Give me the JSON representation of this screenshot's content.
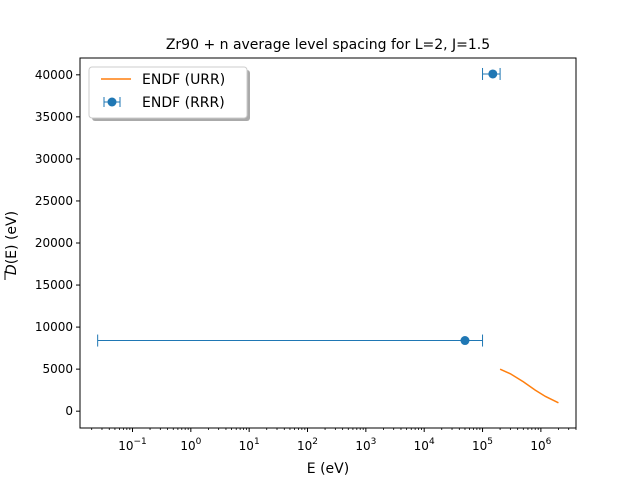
{
  "chart_data": {
    "type": "scatter",
    "title": "Zr90 + n average level spacing for L=2, J=1.5",
    "xlabel": "E (eV)",
    "ylabel_main": "D",
    "ylabel_rest": "(E) (eV)",
    "xscale": "log",
    "xlim": [
      0.0126,
      4000000
    ],
    "ylim": [
      -2000,
      42000
    ],
    "grid": false,
    "legend_position": "upper-left",
    "x_ticks": [
      {
        "value": 0.1,
        "base": "10",
        "exp": "−1"
      },
      {
        "value": 1,
        "base": "10",
        "exp": "0"
      },
      {
        "value": 10,
        "base": "10",
        "exp": "1"
      },
      {
        "value": 100,
        "base": "10",
        "exp": "2"
      },
      {
        "value": 1000,
        "base": "10",
        "exp": "3"
      },
      {
        "value": 10000,
        "base": "10",
        "exp": "4"
      },
      {
        "value": 100000,
        "base": "10",
        "exp": "5"
      },
      {
        "value": 1000000,
        "base": "10",
        "exp": "6"
      }
    ],
    "y_ticks": [
      {
        "value": 0,
        "label": "0"
      },
      {
        "value": 5000,
        "label": "5000"
      },
      {
        "value": 10000,
        "label": "10000"
      },
      {
        "value": 15000,
        "label": "15000"
      },
      {
        "value": 20000,
        "label": "20000"
      },
      {
        "value": 25000,
        "label": "25000"
      },
      {
        "value": 30000,
        "label": "30000"
      },
      {
        "value": 35000,
        "label": "35000"
      },
      {
        "value": 40000,
        "label": "40000"
      }
    ],
    "series": [
      {
        "name": "ENDF (URR)",
        "kind": "line",
        "color": "#ff7f0e",
        "x": [
          200000,
          300000,
          500000,
          800000,
          1200000,
          2000000
        ],
        "y": [
          5000,
          4450,
          3500,
          2500,
          1750,
          1000
        ]
      },
      {
        "name": "ENDF (RRR)",
        "kind": "errorbar",
        "color": "#1f77b4",
        "points": [
          {
            "x": 50000,
            "y": 8400,
            "xerr_low": 0.0253,
            "xerr_high": 100000
          },
          {
            "x": 150000,
            "y": 40100,
            "xerr_low": 100000,
            "xerr_high": 200000
          }
        ]
      }
    ]
  }
}
